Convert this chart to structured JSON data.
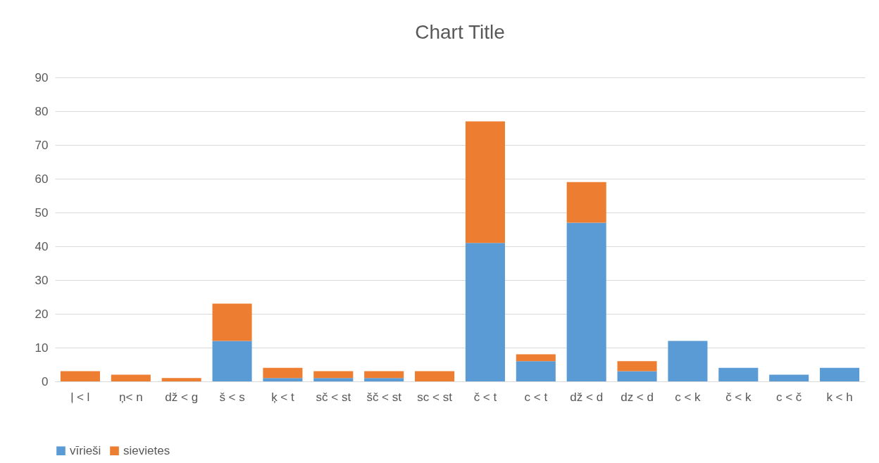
{
  "chart_data": {
    "type": "bar",
    "title": "Chart Title",
    "stacked": true,
    "categories": [
      "ļ < l",
      "ņ< n",
      "dž < g",
      "š < s",
      "ķ < t",
      "sč < st",
      "šč < st",
      "sc < st",
      "č < t",
      "c < t",
      "dž < d",
      "dz < d",
      "c < k",
      "č < k",
      "c < č",
      "k < h"
    ],
    "series": [
      {
        "name": "vīrieši",
        "color": "#5b9bd5",
        "values": [
          0,
          0,
          0,
          12,
          1,
          1,
          1,
          0,
          41,
          6,
          47,
          3,
          12,
          4,
          2,
          4
        ]
      },
      {
        "name": "sievietes",
        "color": "#ed7d31",
        "values": [
          3,
          2,
          1,
          11,
          3,
          2,
          2,
          3,
          36,
          2,
          12,
          3,
          0,
          0,
          0,
          0
        ]
      }
    ],
    "ylim": [
      0,
      90
    ],
    "yticks": [
      0,
      10,
      20,
      30,
      40,
      50,
      60,
      70,
      80,
      90
    ],
    "grid": "y",
    "legend": "bottom"
  }
}
